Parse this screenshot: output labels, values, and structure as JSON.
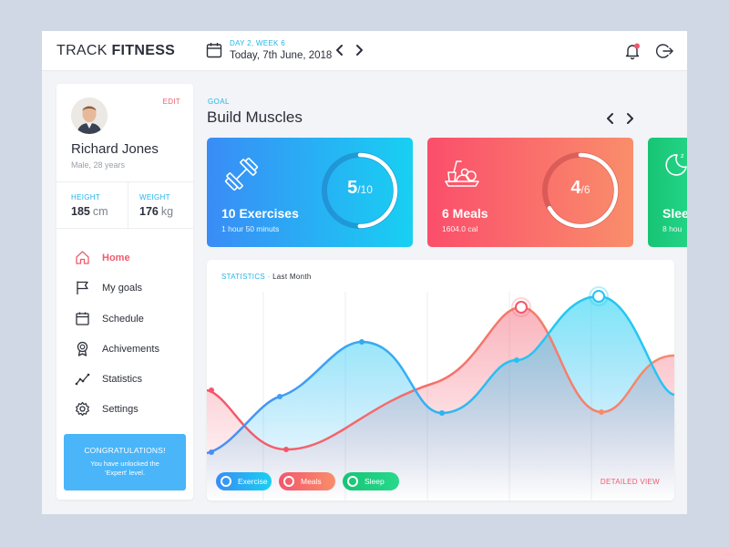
{
  "header": {
    "brand_light": "TRACK",
    "brand_bold": "FITNESS",
    "week": "DAY 2, WEEK 6",
    "date": "Today, 7th June, 2018"
  },
  "profile": {
    "edit_label": "EDIT",
    "name": "Richard Jones",
    "subtitle": "Male, 28 years",
    "height_label": "HEIGHT",
    "height_value": "185",
    "height_unit": "cm",
    "weight_label": "WEIGHT",
    "weight_value": "176",
    "weight_unit": "kg"
  },
  "menu": {
    "items": [
      {
        "label": "Home",
        "icon": "home-icon",
        "active": true
      },
      {
        "label": "My goals",
        "icon": "flag-icon",
        "active": false
      },
      {
        "label": "Schedule",
        "icon": "calendar-icon",
        "active": false
      },
      {
        "label": "Achivements",
        "icon": "medal-icon",
        "active": false
      },
      {
        "label": "Statistics",
        "icon": "trend-icon",
        "active": false
      },
      {
        "label": "Settings",
        "icon": "gear-icon",
        "active": false
      }
    ]
  },
  "congrats": {
    "title": "CONGRATULATIONS!",
    "text": "You have unlocked the 'Expert' level."
  },
  "goal": {
    "label": "GOAL",
    "title": "Build Muscles"
  },
  "cards": [
    {
      "title": "10 Exercises",
      "subtitle": "1 hour 50 minuts",
      "done": "5",
      "total": "/10",
      "progress": 0.5,
      "icon": "dumbbell-icon"
    },
    {
      "title": "6 Meals",
      "subtitle": "1604.0 cal",
      "done": "4",
      "total": "/6",
      "progress": 0.667,
      "icon": "meal-icon"
    },
    {
      "title": "Slee",
      "subtitle": "8 hou",
      "icon": "moon-icon"
    }
  ],
  "statistics": {
    "label": "STATISTICS",
    "period": "Last Month",
    "detailed": "DETAILED VIEW"
  },
  "legend": [
    {
      "label": "Exercise",
      "color": "#2fb2f3"
    },
    {
      "label": "Meals",
      "color": "#f3576b"
    },
    {
      "label": "Sleep",
      "color": "#1fcc84"
    }
  ],
  "colors": {
    "accent_blue": "#23b5e8",
    "accent_red": "#ef5b6d",
    "exercise": "#2fb2f3",
    "meals": "#f3576b",
    "sleep": "#1fcc84"
  }
}
